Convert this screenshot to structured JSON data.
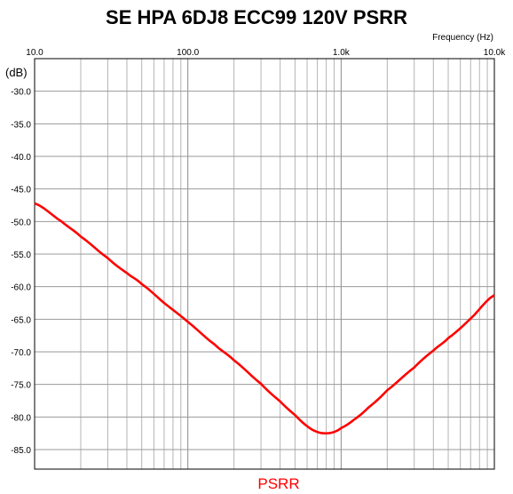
{
  "chart_data": {
    "type": "line",
    "title": "SE HPA 6DJ8 ECC99 120V PSRR",
    "xlabel": "Frequency (Hz)",
    "ylabel": "(dB)",
    "x_scale": "log",
    "xlim": [
      10,
      10000
    ],
    "ylim": [
      -88,
      -25
    ],
    "x_ticks": [
      {
        "value": 10,
        "label": "10.0"
      },
      {
        "value": 100,
        "label": "100.0"
      },
      {
        "value": 1000,
        "label": "1.0k"
      },
      {
        "value": 10000,
        "label": "10.0k"
      }
    ],
    "y_ticks": [
      -30,
      -35,
      -40,
      -45,
      -50,
      -55,
      -60,
      -65,
      -70,
      -75,
      -80,
      -85
    ],
    "y_tick_labels": [
      "-30.0",
      "-35.0",
      "-40.0",
      "-45.0",
      "-50.0",
      "-55.0",
      "-60.0",
      "-65.0",
      "-70.0",
      "-75.0",
      "-80.0",
      "-85.0"
    ],
    "grid": true,
    "legend": {
      "placement": "bottom-center"
    },
    "series": [
      {
        "name": "PSRR",
        "color": "#ff0000",
        "points": [
          [
            10,
            -47.2
          ],
          [
            15,
            -50.0
          ],
          [
            20,
            -52.3
          ],
          [
            30,
            -55.6
          ],
          [
            40,
            -57.9
          ],
          [
            50,
            -59.6
          ],
          [
            70,
            -62.5
          ],
          [
            100,
            -65.4
          ],
          [
            150,
            -68.9
          ],
          [
            200,
            -71.3
          ],
          [
            300,
            -74.9
          ],
          [
            400,
            -77.6
          ],
          [
            500,
            -79.7
          ],
          [
            600,
            -81.4
          ],
          [
            700,
            -82.3
          ],
          [
            800,
            -82.5
          ],
          [
            900,
            -82.3
          ],
          [
            1000,
            -81.7
          ],
          [
            1200,
            -80.5
          ],
          [
            1500,
            -78.6
          ],
          [
            2000,
            -75.9
          ],
          [
            3000,
            -72.4
          ],
          [
            4000,
            -69.8
          ],
          [
            5000,
            -67.9
          ],
          [
            7000,
            -64.9
          ],
          [
            10000,
            -61.3
          ]
        ]
      }
    ]
  }
}
